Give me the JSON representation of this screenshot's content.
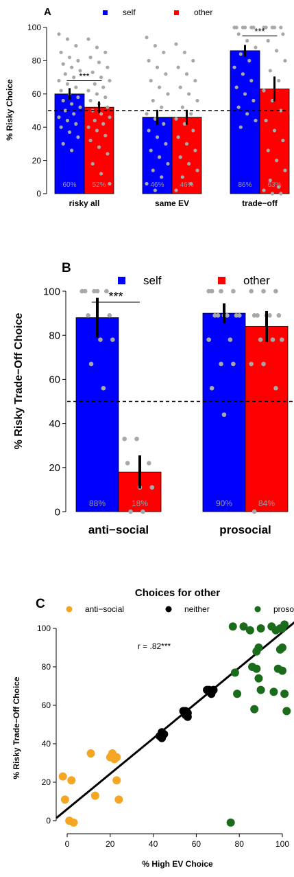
{
  "chart_data": [
    {
      "panel": "A",
      "type": "bar",
      "ylabel": "% Risky Choice",
      "ylim": [
        0,
        100
      ],
      "yticks": [
        0,
        20,
        40,
        60,
        80,
        100
      ],
      "legend": [
        {
          "name": "self",
          "color": "#0000ff"
        },
        {
          "name": "other",
          "color": "#ff0000"
        }
      ],
      "legend_position": "top",
      "reference_line": 50,
      "categories": [
        "risky all",
        "same EV",
        "trade−off"
      ],
      "series": [
        {
          "name": "self",
          "color": "#0000ff",
          "values": [
            60,
            46,
            86
          ],
          "labels": [
            "60%",
            "46%",
            "86%"
          ],
          "error": [
            3.5,
            4.5,
            3.5
          ]
        },
        {
          "name": "other",
          "color": "#ff0000",
          "values": [
            52,
            46,
            63
          ],
          "labels": [
            "52%",
            "46%",
            "63%"
          ],
          "error": [
            3.5,
            4.5,
            7.5
          ]
        }
      ],
      "significance": [
        {
          "category": 0,
          "label": "***",
          "y": 68
        },
        {
          "category": 2,
          "label": "***",
          "y": 95
        }
      ],
      "points": [
        [
          [
            96,
            93,
            89,
            85,
            82,
            80,
            78,
            76,
            74,
            72,
            70,
            68,
            66,
            64,
            62,
            60,
            58,
            56,
            54,
            52,
            50,
            48,
            46,
            44,
            42,
            40,
            37,
            34,
            30,
            26
          ],
          [
            93,
            88,
            85,
            82,
            79,
            76,
            73,
            70,
            68,
            66,
            64,
            62,
            60,
            58,
            56,
            54,
            52,
            50,
            48,
            46,
            44,
            42,
            40,
            38,
            35,
            32,
            28,
            24,
            18,
            12,
            6
          ]
        ],
        [
          [
            94,
            89,
            85,
            80,
            76,
            72,
            68,
            64,
            60,
            56,
            52,
            48,
            45,
            42,
            38,
            34,
            30,
            26,
            22,
            18,
            14,
            10,
            6,
            2
          ],
          [
            90,
            85,
            80,
            76,
            72,
            68,
            64,
            60,
            56,
            52,
            48,
            45,
            42,
            38,
            34,
            30,
            26,
            22,
            18,
            14,
            10,
            6,
            2
          ]
        ],
        [
          [
            100,
            100,
            100,
            100,
            100,
            100,
            96,
            92,
            88,
            84,
            80,
            76,
            72,
            68,
            64,
            60,
            56,
            52,
            48,
            44,
            40
          ],
          [
            100,
            100,
            100,
            100,
            100,
            96,
            92,
            86,
            80,
            74,
            68,
            62,
            56,
            50,
            44,
            38,
            32,
            26,
            20,
            14,
            8,
            4,
            2,
            0,
            0
          ]
        ]
      ]
    },
    {
      "panel": "B",
      "type": "bar",
      "ylabel": "% Risky Trade−Off Choice",
      "ylim": [
        0,
        100
      ],
      "yticks": [
        0,
        20,
        40,
        60,
        80,
        100
      ],
      "legend": [
        {
          "name": "self",
          "color": "#0000ff"
        },
        {
          "name": "other",
          "color": "#ff0000"
        }
      ],
      "legend_position": "top",
      "reference_line": 50,
      "categories": [
        "anti−social",
        "prosocial"
      ],
      "series": [
        {
          "name": "self",
          "color": "#0000ff",
          "values": [
            88,
            90
          ],
          "labels": [
            "88%",
            "90%"
          ],
          "error": [
            9,
            4.5
          ]
        },
        {
          "name": "other",
          "color": "#ff0000",
          "values": [
            18,
            84
          ],
          "labels": [
            "18%",
            "84%"
          ],
          "error": [
            7.5,
            7
          ]
        }
      ],
      "significance": [
        {
          "category": 0,
          "label": "***",
          "y": 95
        }
      ],
      "points": [
        [
          [
            100,
            100,
            100,
            100,
            100,
            89,
            89,
            78,
            78,
            67,
            56
          ],
          [
            33,
            33,
            22,
            22,
            11,
            11,
            0,
            0
          ]
        ],
        [
          [
            100,
            100,
            100,
            100,
            89,
            89,
            89,
            89,
            89,
            89,
            78,
            78,
            67,
            67,
            56,
            44
          ],
          [
            100,
            100,
            100,
            89,
            89,
            89,
            89,
            89,
            78,
            78,
            78,
            67,
            67,
            56,
            0
          ]
        ]
      ]
    },
    {
      "panel": "C",
      "type": "scatter",
      "title": "Choices for other",
      "xlabel": "% High EV Choice",
      "ylabel": "% Risky Trade−Off Choice",
      "xlim": [
        -5,
        105
      ],
      "ylim": [
        -5,
        105
      ],
      "xticks": [
        0,
        20,
        40,
        60,
        80,
        100
      ],
      "yticks": [
        0,
        20,
        40,
        60,
        80,
        100
      ],
      "annotation": "r = .82***",
      "legend_position": "top",
      "fit_line": {
        "intercept": 6,
        "slope": 0.92
      },
      "series": [
        {
          "name": "anti−social",
          "color": "#f5a623",
          "x": [
            -2,
            -1,
            1,
            3,
            2,
            11,
            13,
            20,
            21,
            22,
            23,
            24,
            23
          ],
          "y": [
            23,
            11,
            0,
            -1,
            21,
            35,
            13,
            33,
            35,
            32,
            21,
            11,
            33
          ]
        },
        {
          "name": "neither",
          "color": "#000000",
          "x": [
            43,
            44,
            45,
            44,
            54,
            55,
            56,
            56,
            55,
            65,
            66,
            67,
            68,
            67
          ],
          "y": [
            44,
            46,
            45,
            43,
            57,
            57,
            54,
            56,
            55,
            68,
            68,
            66,
            68,
            67
          ]
        },
        {
          "name": "prosocial",
          "color": "#1a6b1a",
          "x": [
            76,
            77,
            78,
            79,
            82,
            86,
            88,
            89,
            90,
            95,
            97,
            100,
            101,
            100,
            99,
            98,
            101,
            102,
            100,
            96,
            99,
            88,
            87,
            89,
            90,
            85
          ],
          "y": [
            -1,
            101,
            77,
            66,
            101,
            80,
            79,
            90,
            100,
            101,
            99,
            100,
            102,
            90,
            89,
            79,
            66,
            57,
            78,
            67,
            100,
            88,
            58,
            74,
            68,
            99
          ]
        }
      ]
    }
  ]
}
